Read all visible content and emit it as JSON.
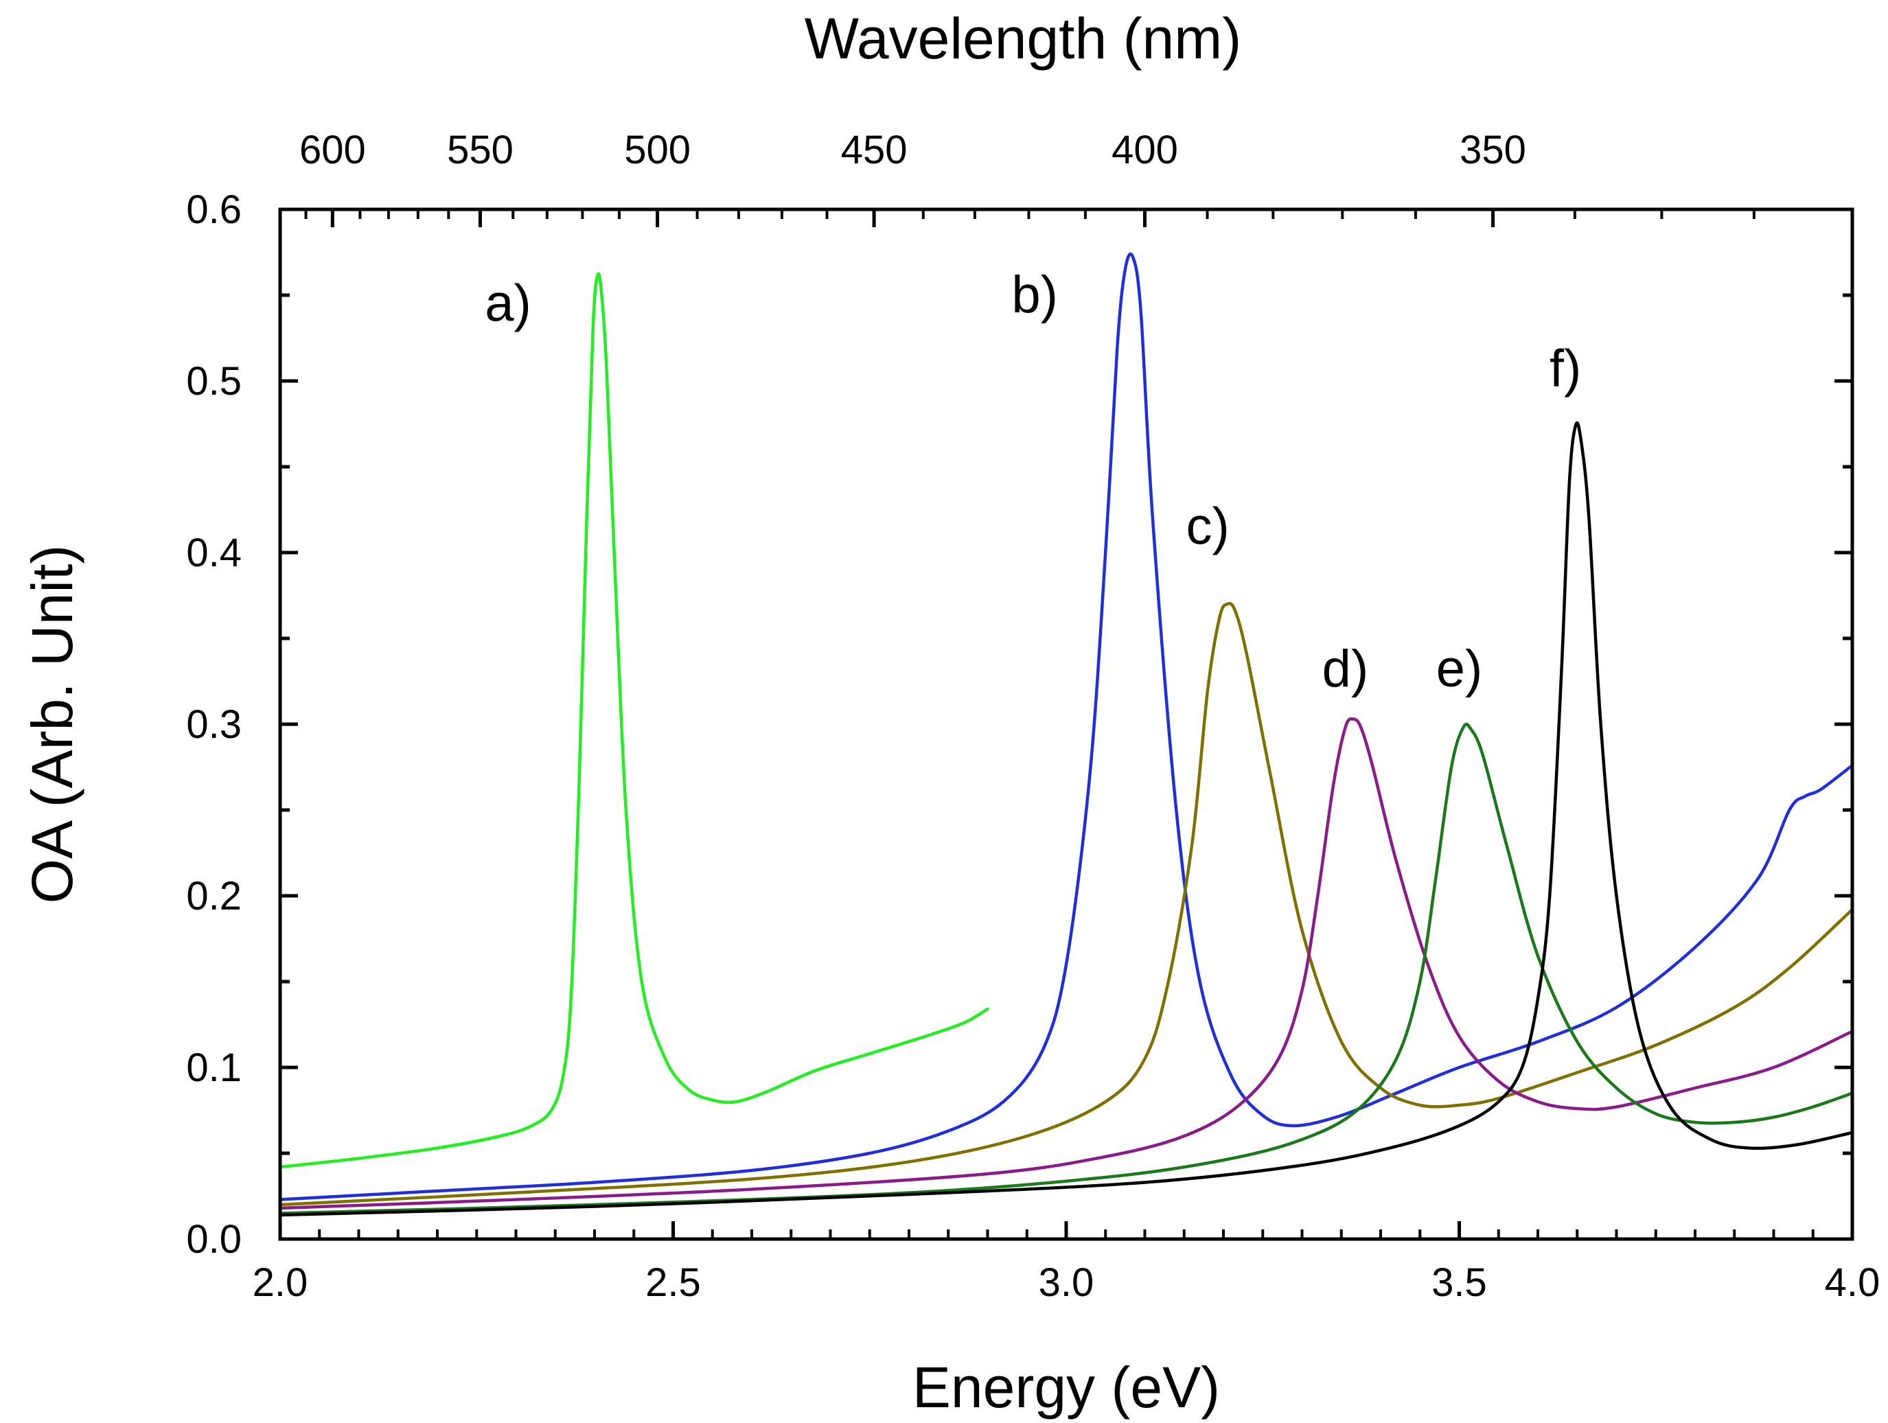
{
  "chart_data": {
    "type": "line",
    "title": "",
    "xlabel": "Energy (eV)",
    "ylabel": "OA (Arb. Unit)",
    "top_xlabel": "Wavelength (nm)",
    "xlim": [
      2.0,
      4.0
    ],
    "ylim": [
      0.0,
      0.6
    ],
    "x_ticks": [
      2.0,
      2.5,
      3.0,
      3.5,
      4.0
    ],
    "x_tick_labels": [
      "2.0",
      "2.5",
      "3.0",
      "3.5",
      "4.0"
    ],
    "y_ticks": [
      0.0,
      0.1,
      0.2,
      0.3,
      0.4,
      0.5,
      0.6
    ],
    "y_tick_labels": [
      "0.0",
      "0.1",
      "0.2",
      "0.3",
      "0.4",
      "0.5",
      "0.6"
    ],
    "top_ticks_nm": [
      600,
      550,
      500,
      450,
      400,
      350
    ],
    "top_tick_labels": [
      "600",
      "550",
      "500",
      "450",
      "400",
      "350"
    ],
    "series": [
      {
        "name": "a)",
        "color": "#22ee22",
        "label_at": [
          2.29,
          0.535
        ],
        "points": [
          [
            2.0,
            0.042
          ],
          [
            2.1,
            0.047
          ],
          [
            2.2,
            0.053
          ],
          [
            2.28,
            0.06
          ],
          [
            2.32,
            0.066
          ],
          [
            2.345,
            0.075
          ],
          [
            2.36,
            0.095
          ],
          [
            2.37,
            0.14
          ],
          [
            2.38,
            0.26
          ],
          [
            2.39,
            0.42
          ],
          [
            2.398,
            0.53
          ],
          [
            2.403,
            0.56
          ],
          [
            2.408,
            0.555
          ],
          [
            2.415,
            0.51
          ],
          [
            2.425,
            0.4
          ],
          [
            2.44,
            0.25
          ],
          [
            2.46,
            0.15
          ],
          [
            2.49,
            0.105
          ],
          [
            2.52,
            0.087
          ],
          [
            2.55,
            0.081
          ],
          [
            2.58,
            0.08
          ],
          [
            2.62,
            0.086
          ],
          [
            2.68,
            0.098
          ],
          [
            2.75,
            0.108
          ],
          [
            2.82,
            0.118
          ],
          [
            2.87,
            0.126
          ],
          [
            2.9,
            0.134
          ]
        ]
      },
      {
        "name": "b)",
        "color": "#1f2fdd",
        "label_at": [
          2.96,
          0.54
        ],
        "points": [
          [
            2.0,
            0.023
          ],
          [
            2.2,
            0.028
          ],
          [
            2.4,
            0.033
          ],
          [
            2.6,
            0.04
          ],
          [
            2.75,
            0.05
          ],
          [
            2.85,
            0.063
          ],
          [
            2.92,
            0.08
          ],
          [
            2.97,
            0.11
          ],
          [
            3.0,
            0.16
          ],
          [
            3.03,
            0.27
          ],
          [
            3.05,
            0.4
          ],
          [
            3.065,
            0.52
          ],
          [
            3.075,
            0.565
          ],
          [
            3.085,
            0.572
          ],
          [
            3.095,
            0.54
          ],
          [
            3.11,
            0.42
          ],
          [
            3.14,
            0.25
          ],
          [
            3.17,
            0.15
          ],
          [
            3.21,
            0.095
          ],
          [
            3.25,
            0.072
          ],
          [
            3.29,
            0.066
          ],
          [
            3.35,
            0.072
          ],
          [
            3.42,
            0.085
          ],
          [
            3.5,
            0.1
          ],
          [
            3.6,
            0.115
          ],
          [
            3.7,
            0.135
          ],
          [
            3.8,
            0.17
          ],
          [
            3.88,
            0.21
          ],
          [
            3.92,
            0.25
          ],
          [
            3.94,
            0.258
          ],
          [
            3.96,
            0.262
          ],
          [
            4.0,
            0.276
          ]
        ]
      },
      {
        "name": "c)",
        "color": "#807000",
        "label_at": [
          3.18,
          0.405
        ],
        "points": [
          [
            2.0,
            0.02
          ],
          [
            2.3,
            0.027
          ],
          [
            2.6,
            0.035
          ],
          [
            2.8,
            0.045
          ],
          [
            2.95,
            0.06
          ],
          [
            3.05,
            0.08
          ],
          [
            3.1,
            0.105
          ],
          [
            3.13,
            0.15
          ],
          [
            3.16,
            0.23
          ],
          [
            3.18,
            0.32
          ],
          [
            3.195,
            0.362
          ],
          [
            3.205,
            0.37
          ],
          [
            3.215,
            0.366
          ],
          [
            3.23,
            0.34
          ],
          [
            3.26,
            0.27
          ],
          [
            3.3,
            0.18
          ],
          [
            3.35,
            0.115
          ],
          [
            3.4,
            0.088
          ],
          [
            3.45,
            0.078
          ],
          [
            3.5,
            0.078
          ],
          [
            3.55,
            0.082
          ],
          [
            3.65,
            0.097
          ],
          [
            3.75,
            0.113
          ],
          [
            3.85,
            0.135
          ],
          [
            3.92,
            0.158
          ],
          [
            4.0,
            0.192
          ]
        ]
      },
      {
        "name": "d)",
        "color": "#8b1a8b",
        "label_at": [
          3.355,
          0.322
        ],
        "points": [
          [
            2.0,
            0.018
          ],
          [
            2.3,
            0.023
          ],
          [
            2.6,
            0.029
          ],
          [
            2.9,
            0.038
          ],
          [
            3.05,
            0.048
          ],
          [
            3.15,
            0.06
          ],
          [
            3.22,
            0.078
          ],
          [
            3.27,
            0.105
          ],
          [
            3.3,
            0.145
          ],
          [
            3.32,
            0.2
          ],
          [
            3.34,
            0.265
          ],
          [
            3.355,
            0.298
          ],
          [
            3.365,
            0.303
          ],
          [
            3.375,
            0.298
          ],
          [
            3.39,
            0.275
          ],
          [
            3.42,
            0.22
          ],
          [
            3.46,
            0.16
          ],
          [
            3.5,
            0.118
          ],
          [
            3.55,
            0.092
          ],
          [
            3.6,
            0.08
          ],
          [
            3.65,
            0.076
          ],
          [
            3.7,
            0.077
          ],
          [
            3.8,
            0.088
          ],
          [
            3.9,
            0.1
          ],
          [
            4.0,
            0.121
          ]
        ]
      },
      {
        "name": "e)",
        "color": "#1a7a1a",
        "label_at": [
          3.5,
          0.322
        ],
        "points": [
          [
            2.0,
            0.015
          ],
          [
            2.4,
            0.02
          ],
          [
            2.8,
            0.027
          ],
          [
            3.05,
            0.036
          ],
          [
            3.2,
            0.046
          ],
          [
            3.3,
            0.058
          ],
          [
            3.37,
            0.075
          ],
          [
            3.42,
            0.105
          ],
          [
            3.45,
            0.15
          ],
          [
            3.47,
            0.21
          ],
          [
            3.49,
            0.275
          ],
          [
            3.505,
            0.298
          ],
          [
            3.515,
            0.297
          ],
          [
            3.53,
            0.282
          ],
          [
            3.56,
            0.23
          ],
          [
            3.6,
            0.165
          ],
          [
            3.65,
            0.115
          ],
          [
            3.7,
            0.088
          ],
          [
            3.75,
            0.073
          ],
          [
            3.8,
            0.068
          ],
          [
            3.85,
            0.068
          ],
          [
            3.9,
            0.071
          ],
          [
            3.95,
            0.077
          ],
          [
            4.0,
            0.085
          ]
        ]
      },
      {
        "name": "f)",
        "color": "#000000",
        "label_at": [
          3.635,
          0.497
        ],
        "points": [
          [
            2.0,
            0.014
          ],
          [
            2.4,
            0.019
          ],
          [
            2.8,
            0.026
          ],
          [
            3.1,
            0.033
          ],
          [
            3.3,
            0.043
          ],
          [
            3.42,
            0.054
          ],
          [
            3.5,
            0.066
          ],
          [
            3.55,
            0.08
          ],
          [
            3.58,
            0.1
          ],
          [
            3.6,
            0.14
          ],
          [
            3.615,
            0.2
          ],
          [
            3.63,
            0.33
          ],
          [
            3.64,
            0.44
          ],
          [
            3.648,
            0.474
          ],
          [
            3.655,
            0.465
          ],
          [
            3.665,
            0.42
          ],
          [
            3.68,
            0.3
          ],
          [
            3.7,
            0.2
          ],
          [
            3.73,
            0.12
          ],
          [
            3.77,
            0.076
          ],
          [
            3.82,
            0.058
          ],
          [
            3.87,
            0.053
          ],
          [
            3.93,
            0.055
          ],
          [
            4.0,
            0.062
          ]
        ]
      }
    ]
  }
}
